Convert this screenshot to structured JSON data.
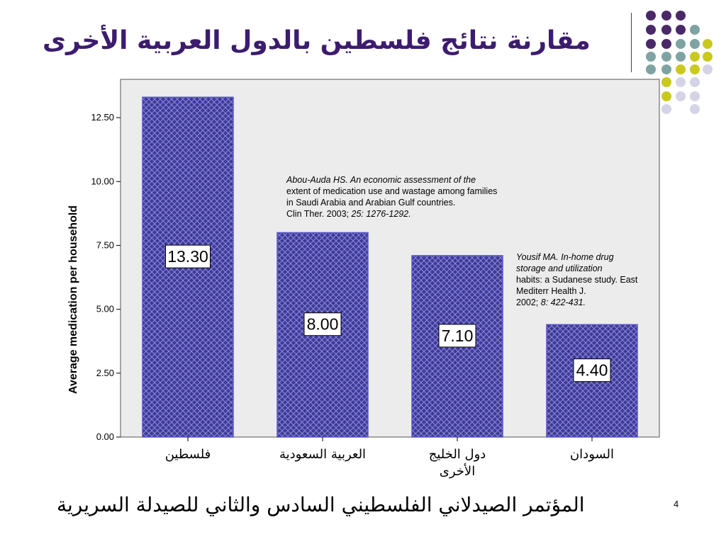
{
  "title": "مقارنة نتائج فلسطين بالدول العربية الأخرى",
  "footer": "المؤتمر الصيدلاني الفلسطيني السادس والثاني للصيدلة السريرية",
  "page_number": "4",
  "colors": {
    "title": "#3c1c6e",
    "bar_fill": "#3d3a9a",
    "bar_pattern": "#8e8ad6",
    "plot_bg": "#ececec",
    "dot_purple": "#4a2968",
    "dot_teal": "#7fa3a3",
    "dot_yellow": "#c9c91e",
    "dot_lavender": "#d4d4e6"
  },
  "references": {
    "ref1": {
      "italic_lead": "Abou-Auda HS. An economic assessment of the",
      "body": "extent of medication use and wastage among families\nin Saudi Arabia and Arabian Gulf countries.\nClin Ther. 2003; ",
      "italic_tail": "25: 1276-1292."
    },
    "ref2": {
      "italic_lead": "Yousif MA. In-home drug\nstorage and utilization",
      "body": "habits: a Sudanese study. East\nMediterr Health J.\n2002; ",
      "italic_tail": "8: 422-431."
    }
  },
  "chart_data": {
    "type": "bar",
    "categories": [
      "فلسطين",
      "العربية السعودية",
      "دول الخليج\nالأخرى",
      "السودان"
    ],
    "values": [
      13.3,
      8.0,
      7.1,
      4.4
    ],
    "data_labels": [
      "13.30",
      "8.00",
      "7.10",
      "4.40"
    ],
    "title": "",
    "xlabel": "",
    "ylabel": "Average medication per household",
    "ylim": [
      0,
      14.0
    ],
    "yticks": [
      0.0,
      2.5,
      5.0,
      7.5,
      10.0,
      12.5
    ],
    "ytick_labels": [
      "0.00",
      "2.50",
      "5.00",
      "7.50",
      "10.00",
      "12.50"
    ],
    "grid": false
  }
}
